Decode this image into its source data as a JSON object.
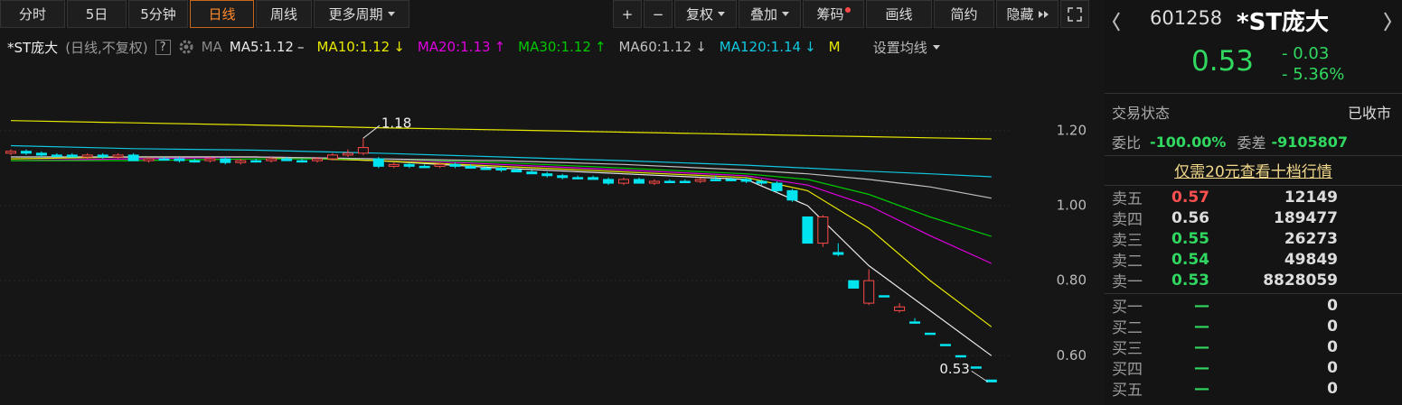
{
  "toolbar": {
    "left": [
      "分时",
      "5日",
      "5分钟",
      "日线",
      "周线",
      "更多周期"
    ],
    "active": "日线",
    "right": [
      "+",
      "−",
      "复权",
      "叠加",
      "筹码",
      "画线",
      "简约",
      "隐藏"
    ]
  },
  "legend": {
    "name": "*ST庞大",
    "mode": "(日线,不复权)",
    "help": "?",
    "ma": "MA",
    "settings": "设置均线"
  },
  "chart_data": {
    "type": "candlestick",
    "open": [
      1.14,
      1.145,
      1.14,
      1.135,
      1.135,
      1.13,
      1.135,
      1.13,
      1.135,
      1.12,
      1.125,
      1.125,
      1.12,
      1.12,
      1.125,
      1.115,
      1.12,
      1.12,
      1.125,
      1.12,
      1.12,
      1.125,
      1.135,
      1.14,
      1.125,
      1.105,
      1.11,
      1.105,
      1.105,
      1.11,
      1.105,
      1.1,
      1.1,
      1.095,
      1.09,
      1.085,
      1.08,
      1.075,
      1.075,
      1.07,
      1.06,
      1.07,
      1.06,
      1.065,
      1.065,
      1.065,
      1.07,
      1.07,
      1.07,
      1.065,
      1.06,
      1.04,
      0.97,
      0.9,
      0.875,
      0.8,
      0.74,
      0.76,
      0.72,
      0.69,
      0.66,
      0.63,
      0.6,
      0.57,
      0.535
    ],
    "high": [
      1.15,
      1.15,
      1.145,
      1.14,
      1.14,
      1.14,
      1.14,
      1.14,
      1.14,
      1.13,
      1.13,
      1.13,
      1.125,
      1.13,
      1.13,
      1.125,
      1.125,
      1.13,
      1.13,
      1.125,
      1.13,
      1.14,
      1.15,
      1.18,
      1.13,
      1.115,
      1.115,
      1.11,
      1.115,
      1.115,
      1.11,
      1.105,
      1.105,
      1.1,
      1.095,
      1.09,
      1.085,
      1.08,
      1.08,
      1.075,
      1.075,
      1.075,
      1.07,
      1.07,
      1.07,
      1.075,
      1.08,
      1.075,
      1.075,
      1.07,
      1.065,
      1.045,
      0.97,
      0.975,
      0.9,
      0.8,
      0.83,
      0.76,
      0.74,
      0.7,
      0.66,
      0.63,
      0.6,
      0.57,
      0.535
    ],
    "low": [
      1.135,
      1.135,
      1.13,
      1.13,
      1.13,
      1.125,
      1.125,
      1.125,
      1.125,
      1.115,
      1.12,
      1.115,
      1.115,
      1.115,
      1.11,
      1.11,
      1.115,
      1.115,
      1.12,
      1.115,
      1.115,
      1.12,
      1.13,
      1.135,
      1.1,
      1.1,
      1.1,
      1.1,
      1.1,
      1.1,
      1.1,
      1.095,
      1.09,
      1.09,
      1.085,
      1.075,
      1.07,
      1.07,
      1.07,
      1.055,
      1.055,
      1.06,
      1.055,
      1.06,
      1.06,
      1.06,
      1.065,
      1.065,
      1.06,
      1.055,
      1.035,
      1.01,
      0.9,
      0.89,
      0.865,
      0.78,
      0.735,
      0.76,
      0.715,
      0.685,
      0.66,
      0.63,
      0.6,
      0.57,
      0.53
    ],
    "close": [
      1.145,
      1.14,
      1.135,
      1.135,
      1.13,
      1.135,
      1.13,
      1.135,
      1.12,
      1.125,
      1.125,
      1.12,
      1.12,
      1.125,
      1.115,
      1.12,
      1.12,
      1.125,
      1.12,
      1.12,
      1.125,
      1.135,
      1.14,
      1.155,
      1.105,
      1.11,
      1.105,
      1.105,
      1.11,
      1.105,
      1.1,
      1.1,
      1.095,
      1.09,
      1.085,
      1.08,
      1.075,
      1.075,
      1.07,
      1.06,
      1.07,
      1.06,
      1.065,
      1.065,
      1.065,
      1.07,
      1.07,
      1.07,
      1.065,
      1.06,
      1.04,
      1.015,
      0.9,
      0.97,
      0.87,
      0.78,
      0.8,
      0.76,
      0.73,
      0.69,
      0.66,
      0.63,
      0.6,
      0.57,
      0.53
    ],
    "up_color": "#ff4a4a",
    "down_color": "#00e4f0",
    "ma_x": [
      0,
      8,
      16,
      24,
      32,
      40,
      48,
      52,
      56,
      60,
      64
    ],
    "series": [
      {
        "name": "MA5:1.12",
        "arrow": "–",
        "color": "#e8e8e8",
        "values": [
          1.13,
          1.13,
          1.13,
          1.12,
          1.1,
          1.085,
          1.07,
          1.0,
          0.84,
          0.72,
          0.6
        ]
      },
      {
        "name": "MA10:1.12",
        "arrow": "↓",
        "color": "#e8e800",
        "values": [
          1.125,
          1.13,
          1.13,
          1.12,
          1.105,
          1.09,
          1.075,
          1.04,
          0.94,
          0.8,
          0.677
        ]
      },
      {
        "name": "MA20:1.13",
        "arrow": "↑",
        "color": "#e000e0",
        "values": [
          1.12,
          1.125,
          1.13,
          1.125,
          1.11,
          1.095,
          1.08,
          1.055,
          1.0,
          0.92,
          0.846
        ]
      },
      {
        "name": "MA30:1.12",
        "arrow": "↑",
        "color": "#00c800",
        "values": [
          1.12,
          1.12,
          1.125,
          1.125,
          1.115,
          1.1,
          1.085,
          1.07,
          1.03,
          0.97,
          0.918
        ]
      },
      {
        "name": "MA60:1.12",
        "arrow": "↓",
        "color": "#c0c0c0",
        "values": [
          1.13,
          1.13,
          1.13,
          1.125,
          1.12,
          1.11,
          1.095,
          1.085,
          1.07,
          1.05,
          1.02
        ]
      },
      {
        "name": "MA120:1.14",
        "arrow": "↓",
        "color": "#10c8e0",
        "values": [
          1.16,
          1.152,
          1.148,
          1.14,
          1.13,
          1.12,
          1.108,
          1.1,
          1.092,
          1.085,
          1.077
        ]
      },
      {
        "name": "M",
        "color": "#e8e800",
        "values": [
          1.227,
          1.221,
          1.215,
          1.208,
          1.202,
          1.196,
          1.19,
          1.187,
          1.184,
          1.181,
          1.178
        ]
      }
    ],
    "max_label": {
      "value": 1.18,
      "label": "1.18"
    },
    "min_label": {
      "value": 0.53,
      "label": "0.53"
    },
    "ylim": [
      0.49,
      1.32
    ],
    "yticks": [
      {
        "value": 1.2,
        "label": "1.20"
      },
      {
        "value": 1.0,
        "label": "1.00"
      },
      {
        "value": 0.8,
        "label": "0.80"
      },
      {
        "value": 0.6,
        "label": "0.60"
      }
    ],
    "grid": true
  },
  "quote": {
    "code": "601258",
    "name": "*ST庞大",
    "price": "0.53",
    "change": "- 0.03",
    "pct": "- 5.36%",
    "status_label": "交易状态",
    "status": "已收市",
    "ratio_label": "委比",
    "ratio": "-100.00%",
    "diff_label": "委差",
    "diff": "-9105807",
    "promo": "仅需20元查看十档行情",
    "asks": [
      [
        "卖五",
        "0.57",
        "12149"
      ],
      [
        "卖四",
        "0.56",
        "189477"
      ],
      [
        "卖三",
        "0.55",
        "26273"
      ],
      [
        "卖二",
        "0.54",
        "49849"
      ],
      [
        "卖一",
        "0.53",
        "8828059"
      ]
    ],
    "bids": [
      [
        "买一",
        "—",
        "0"
      ],
      [
        "买二",
        "—",
        "0"
      ],
      [
        "买三",
        "—",
        "0"
      ],
      [
        "买四",
        "—",
        "0"
      ],
      [
        "买五",
        "—",
        "0"
      ]
    ]
  }
}
